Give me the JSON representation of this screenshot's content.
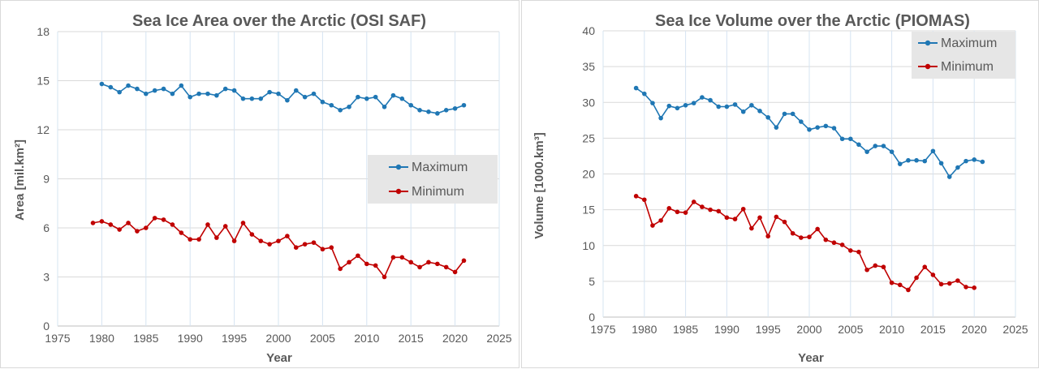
{
  "chart_data": [
    {
      "type": "line",
      "title": "Sea Ice Area over the Arctic (OSI SAF)",
      "xlabel": "Year",
      "ylabel": "Area [mil.km²]",
      "xlim": [
        1975,
        2025
      ],
      "ylim": [
        0,
        18
      ],
      "xticks": [
        "1975",
        "1980",
        "1985",
        "1990",
        "1995",
        "2000",
        "2005",
        "2010",
        "2015",
        "2020",
        "2025"
      ],
      "yticks": [
        "0",
        "3",
        "6",
        "9",
        "12",
        "15",
        "18"
      ],
      "grid": true,
      "legend": "center-right",
      "series": [
        {
          "name": "Maximum",
          "color": "#1f77b4",
          "x": [
            1980,
            1981,
            1982,
            1983,
            1984,
            1985,
            1986,
            1987,
            1988,
            1989,
            1990,
            1991,
            1992,
            1993,
            1994,
            1995,
            1996,
            1997,
            1998,
            1999,
            2000,
            2001,
            2002,
            2003,
            2004,
            2005,
            2006,
            2007,
            2008,
            2009,
            2010,
            2011,
            2012,
            2013,
            2014,
            2015,
            2016,
            2017,
            2018,
            2019,
            2020,
            2021
          ],
          "y": [
            14.8,
            14.6,
            14.3,
            14.7,
            14.5,
            14.2,
            14.4,
            14.5,
            14.2,
            14.7,
            14.0,
            14.2,
            14.2,
            14.1,
            14.5,
            14.4,
            13.9,
            13.9,
            13.9,
            14.3,
            14.2,
            13.8,
            14.4,
            14.0,
            14.2,
            13.7,
            13.5,
            13.2,
            13.4,
            14.0,
            13.9,
            14.0,
            13.4,
            14.1,
            13.9,
            13.5,
            13.2,
            13.1,
            13.0,
            13.2,
            13.3,
            13.5
          ]
        },
        {
          "name": "Minimum",
          "color": "#c00000",
          "x": [
            1979,
            1980,
            1981,
            1982,
            1983,
            1984,
            1985,
            1986,
            1987,
            1988,
            1989,
            1990,
            1991,
            1992,
            1993,
            1994,
            1995,
            1996,
            1997,
            1998,
            1999,
            2000,
            2001,
            2002,
            2003,
            2004,
            2005,
            2006,
            2007,
            2008,
            2009,
            2010,
            2011,
            2012,
            2013,
            2014,
            2015,
            2016,
            2017,
            2018,
            2019,
            2020,
            2021
          ],
          "y": [
            6.3,
            6.4,
            6.2,
            5.9,
            6.3,
            5.8,
            6.0,
            6.6,
            6.5,
            6.2,
            5.7,
            5.3,
            5.3,
            6.2,
            5.4,
            6.1,
            5.2,
            6.3,
            5.6,
            5.2,
            5.0,
            5.2,
            5.5,
            4.8,
            5.0,
            5.1,
            4.7,
            4.8,
            3.5,
            3.9,
            4.3,
            3.8,
            3.7,
            3.0,
            4.2,
            4.2,
            3.9,
            3.6,
            3.9,
            3.8,
            3.6,
            3.3,
            4.0
          ]
        }
      ]
    },
    {
      "type": "line",
      "title": "Sea Ice Volume over the Arctic (PIOMAS)",
      "xlabel": "Year",
      "ylabel": "Volume  [1000.km³]",
      "xlim": [
        1975,
        2025
      ],
      "ylim": [
        0,
        40
      ],
      "xticks": [
        "1975",
        "1980",
        "1985",
        "1990",
        "1995",
        "2000",
        "2005",
        "2010",
        "2015",
        "2020",
        "2025"
      ],
      "yticks": [
        "0",
        "5",
        "10",
        "15",
        "20",
        "25",
        "30",
        "35",
        "40"
      ],
      "grid": true,
      "legend": "top-right",
      "series": [
        {
          "name": "Maximum",
          "color": "#1f77b4",
          "x": [
            1979,
            1980,
            1981,
            1982,
            1983,
            1984,
            1985,
            1986,
            1987,
            1988,
            1989,
            1990,
            1991,
            1992,
            1993,
            1994,
            1995,
            1996,
            1997,
            1998,
            1999,
            2000,
            2001,
            2002,
            2003,
            2004,
            2005,
            2006,
            2007,
            2008,
            2009,
            2010,
            2011,
            2012,
            2013,
            2014,
            2015,
            2016,
            2017,
            2018,
            2019,
            2020,
            2021
          ],
          "y": [
            32.0,
            31.2,
            29.9,
            27.8,
            29.5,
            29.2,
            29.6,
            29.9,
            30.7,
            30.3,
            29.4,
            29.4,
            29.7,
            28.7,
            29.6,
            28.8,
            27.9,
            26.5,
            28.4,
            28.4,
            27.3,
            26.2,
            26.5,
            26.7,
            26.4,
            24.9,
            24.9,
            24.1,
            23.1,
            23.9,
            23.9,
            23.1,
            21.4,
            21.9,
            21.9,
            21.8,
            23.2,
            21.5,
            19.6,
            20.9,
            21.8,
            22.0,
            21.7
          ]
        },
        {
          "name": "Minimum",
          "color": "#c00000",
          "x": [
            1979,
            1980,
            1981,
            1982,
            1983,
            1984,
            1985,
            1986,
            1987,
            1988,
            1989,
            1990,
            1991,
            1992,
            1993,
            1994,
            1995,
            1996,
            1997,
            1998,
            1999,
            2000,
            2001,
            2002,
            2003,
            2004,
            2005,
            2006,
            2007,
            2008,
            2009,
            2010,
            2011,
            2012,
            2013,
            2014,
            2015,
            2016,
            2017,
            2018,
            2019,
            2020
          ],
          "y": [
            16.9,
            16.4,
            12.8,
            13.5,
            15.2,
            14.7,
            14.6,
            16.1,
            15.4,
            15.0,
            14.8,
            13.9,
            13.7,
            15.1,
            12.4,
            13.9,
            11.3,
            14.0,
            13.3,
            11.7,
            11.1,
            11.2,
            12.3,
            10.8,
            10.4,
            10.1,
            9.3,
            9.1,
            6.6,
            7.2,
            7.0,
            4.8,
            4.5,
            3.8,
            5.5,
            7.0,
            5.9,
            4.6,
            4.7,
            5.1,
            4.2,
            4.1
          ]
        }
      ]
    }
  ]
}
